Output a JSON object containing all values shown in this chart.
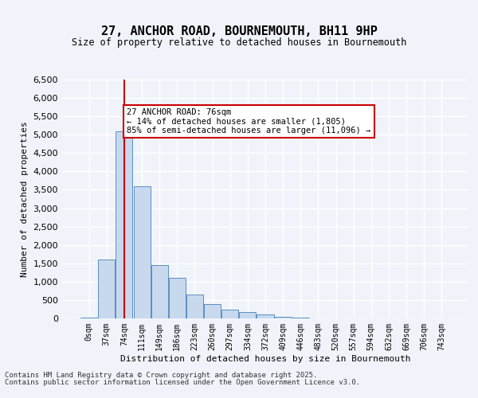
{
  "title": "27, ANCHOR ROAD, BOURNEMOUTH, BH11 9HP",
  "subtitle": "Size of property relative to detached houses in Bournemouth",
  "xlabel": "Distribution of detached houses by size in Bournemouth",
  "ylabel": "Number of detached properties",
  "categories": [
    "0sqm",
    "37sqm",
    "74sqm",
    "111sqm",
    "149sqm",
    "186sqm",
    "223sqm",
    "260sqm",
    "297sqm",
    "334sqm",
    "372sqm",
    "409sqm",
    "446sqm",
    "483sqm",
    "520sqm",
    "557sqm",
    "594sqm",
    "632sqm",
    "669sqm",
    "706sqm",
    "743sqm"
  ],
  "bar_heights": [
    30,
    1600,
    5100,
    3600,
    1450,
    1100,
    650,
    380,
    230,
    170,
    100,
    50,
    20,
    0,
    0,
    0,
    0,
    0,
    0,
    0,
    0
  ],
  "bar_color": "#c8d9ee",
  "bar_edge_color": "#5a8fc0",
  "vline_x": 2,
  "vline_color": "#cc0000",
  "annotation_text": "27 ANCHOR ROAD: 76sqm\n← 14% of detached houses are smaller (1,805)\n85% of semi-detached houses are larger (11,096) →",
  "annotation_box_color": "#cc0000",
  "ylim": [
    0,
    6500
  ],
  "yticks": [
    0,
    500,
    1000,
    1500,
    2000,
    2500,
    3000,
    3500,
    4000,
    4500,
    5000,
    5500,
    6000,
    6500
  ],
  "footer_line1": "Contains HM Land Registry data © Crown copyright and database right 2025.",
  "footer_line2": "Contains public sector information licensed under the Open Government Licence v3.0.",
  "background_color": "#f0f4fa",
  "plot_bg_color": "#f0f4fa"
}
